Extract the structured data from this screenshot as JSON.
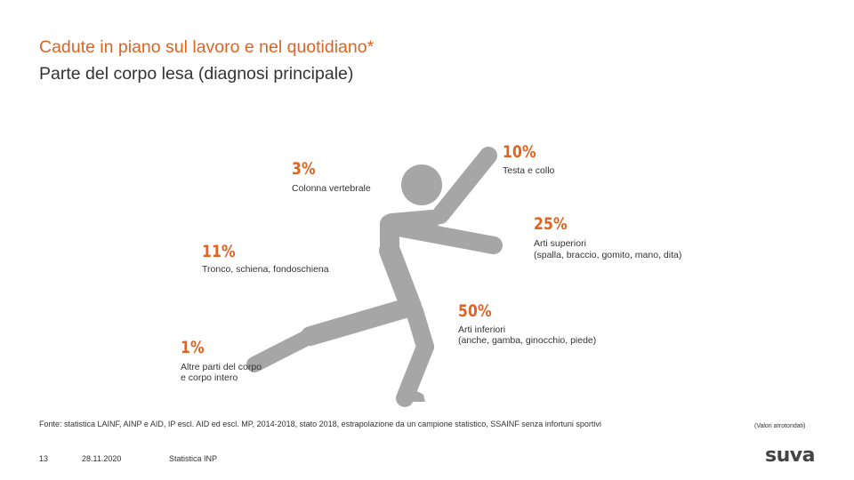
{
  "header": {
    "title": "Cadute in piano sul lavoro e nel quotidiano*",
    "subtitle": "Parte del corpo lesa (diagnosi principale)"
  },
  "figure": {
    "icon": "falling-person-icon",
    "color": "#a6a6a6"
  },
  "stats": {
    "head": {
      "pct": "10%",
      "label": "Testa e collo"
    },
    "spine": {
      "pct": "3%",
      "label": "Colonna vertebrale"
    },
    "upper": {
      "pct": "25%",
      "label_1": "Arti superiori",
      "label_2": "(spalla, braccio, gomito, mano, dita)"
    },
    "trunk": {
      "pct": "11%",
      "label": "Tronco, schiena, fondoschiena"
    },
    "lower": {
      "pct": "50%",
      "label_1": "Arti inferiori",
      "label_2": "(anche, gamba, ginocchio, piede)"
    },
    "other": {
      "pct": "1%",
      "label_1": "Altre parti del corpo",
      "label_2": "e corpo intero"
    }
  },
  "footer": {
    "source": "Fonte: statistica LAINF, AINP e AID, IP escl. AID ed escl. MP, 2014-2018, stato 2018, estrapolazione da un campione statistico, SSAINF senza infortuni sportivi",
    "note": "(Valori arrotondati)",
    "page": "13",
    "date": "28.11.2020",
    "section": "Statistica INP",
    "logo": "suva"
  },
  "colors": {
    "accent": "#e2621f",
    "figure": "#a6a6a6",
    "text": "#333333"
  }
}
